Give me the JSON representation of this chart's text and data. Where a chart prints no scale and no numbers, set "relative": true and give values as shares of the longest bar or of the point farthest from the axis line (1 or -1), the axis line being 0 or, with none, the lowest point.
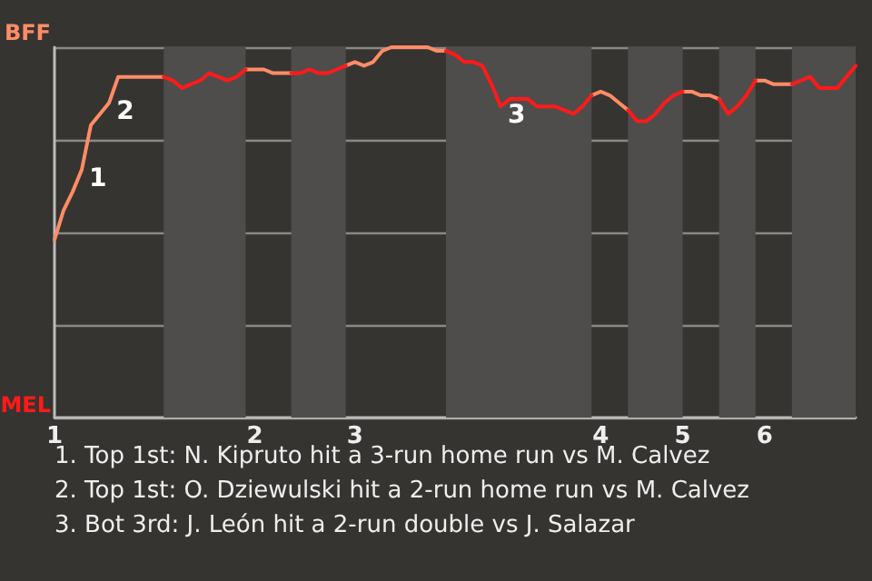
{
  "chart_data": {
    "type": "line",
    "categories": [
      "1",
      null,
      null,
      null,
      null,
      null,
      null,
      null,
      null,
      null,
      null,
      null,
      null,
      null,
      null,
      null,
      null,
      null,
      null,
      null,
      null,
      null,
      "2",
      null,
      null,
      null,
      null,
      null,
      null,
      null,
      null,
      null,
      null,
      "3",
      null,
      null,
      null,
      null,
      null,
      null,
      null,
      null,
      null,
      null,
      null,
      null,
      null,
      null,
      null,
      null,
      null,
      null,
      null,
      null,
      null,
      null,
      null,
      null,
      null,
      null,
      "4",
      null,
      null,
      null,
      null,
      null,
      null,
      null,
      null,
      "5",
      null,
      null,
      null,
      null,
      null,
      null,
      null,
      null,
      "6",
      null,
      null,
      null,
      null,
      null,
      null,
      null,
      null,
      null,
      null
    ],
    "relative": true,
    "series": [
      {
        "color": "#ff8c66",
        "values": [
          0.48,
          0.56,
          0.61,
          0.67,
          0.79,
          0.82,
          0.85,
          0.92,
          0.92,
          0.92,
          0.92,
          0.92,
          0.92,
          null,
          null,
          null,
          null,
          null,
          null,
          null,
          null,
          0.94,
          0.94,
          0.94,
          0.93,
          0.93,
          0.93,
          null,
          null,
          null,
          null,
          null,
          0.95,
          0.96,
          0.95,
          0.96,
          0.99,
          1,
          1,
          1,
          1,
          1,
          0.99,
          0.99,
          null,
          null,
          null,
          null,
          null,
          null,
          null,
          null,
          null,
          null,
          null,
          null,
          null,
          null,
          null,
          0.87,
          0.88,
          0.87,
          0.85,
          0.83,
          null,
          null,
          null,
          null,
          null,
          0.88,
          0.88,
          0.87,
          0.87,
          0.86,
          null,
          null,
          null,
          0.91,
          0.91,
          0.9,
          0.9,
          0.9,
          null,
          null,
          null,
          null,
          null,
          null,
          null
        ]
      },
      {
        "color": "#ff1a1a",
        "values": [
          null,
          null,
          null,
          null,
          null,
          null,
          null,
          null,
          null,
          null,
          null,
          null,
          0.92,
          0.91,
          0.89,
          0.9,
          0.91,
          0.93,
          0.92,
          0.91,
          0.92,
          0.94,
          null,
          null,
          null,
          null,
          0.93,
          0.93,
          0.94,
          0.93,
          0.93,
          0.94,
          0.95,
          null,
          null,
          null,
          null,
          null,
          null,
          null,
          null,
          null,
          null,
          0.99,
          0.98,
          0.96,
          0.96,
          0.95,
          0.9,
          0.84,
          0.86,
          0.86,
          0.86,
          0.84,
          0.84,
          0.84,
          0.83,
          0.82,
          0.84,
          0.87,
          null,
          null,
          null,
          0.83,
          0.8,
          0.8,
          0.82,
          0.85,
          0.87,
          0.88,
          null,
          null,
          null,
          0.86,
          0.82,
          0.84,
          0.87,
          0.91,
          null,
          null,
          null,
          0.9,
          0.91,
          0.92,
          0.89,
          0.89,
          0.89,
          0.92,
          0.95
        ]
      }
    ],
    "grid": "y",
    "annotations": [
      "BFF",
      "MEL",
      "1",
      "2",
      "3",
      "1. Top 1st: N. Kipruto hit a 3-run home run vs M. Calvez",
      "2. Top 1st: O. Dziewulski hit a 2-run home run vs M. Calvez",
      "3. Bot 3rd: J. León hit a 2-run double vs J. Salazar"
    ]
  }
}
